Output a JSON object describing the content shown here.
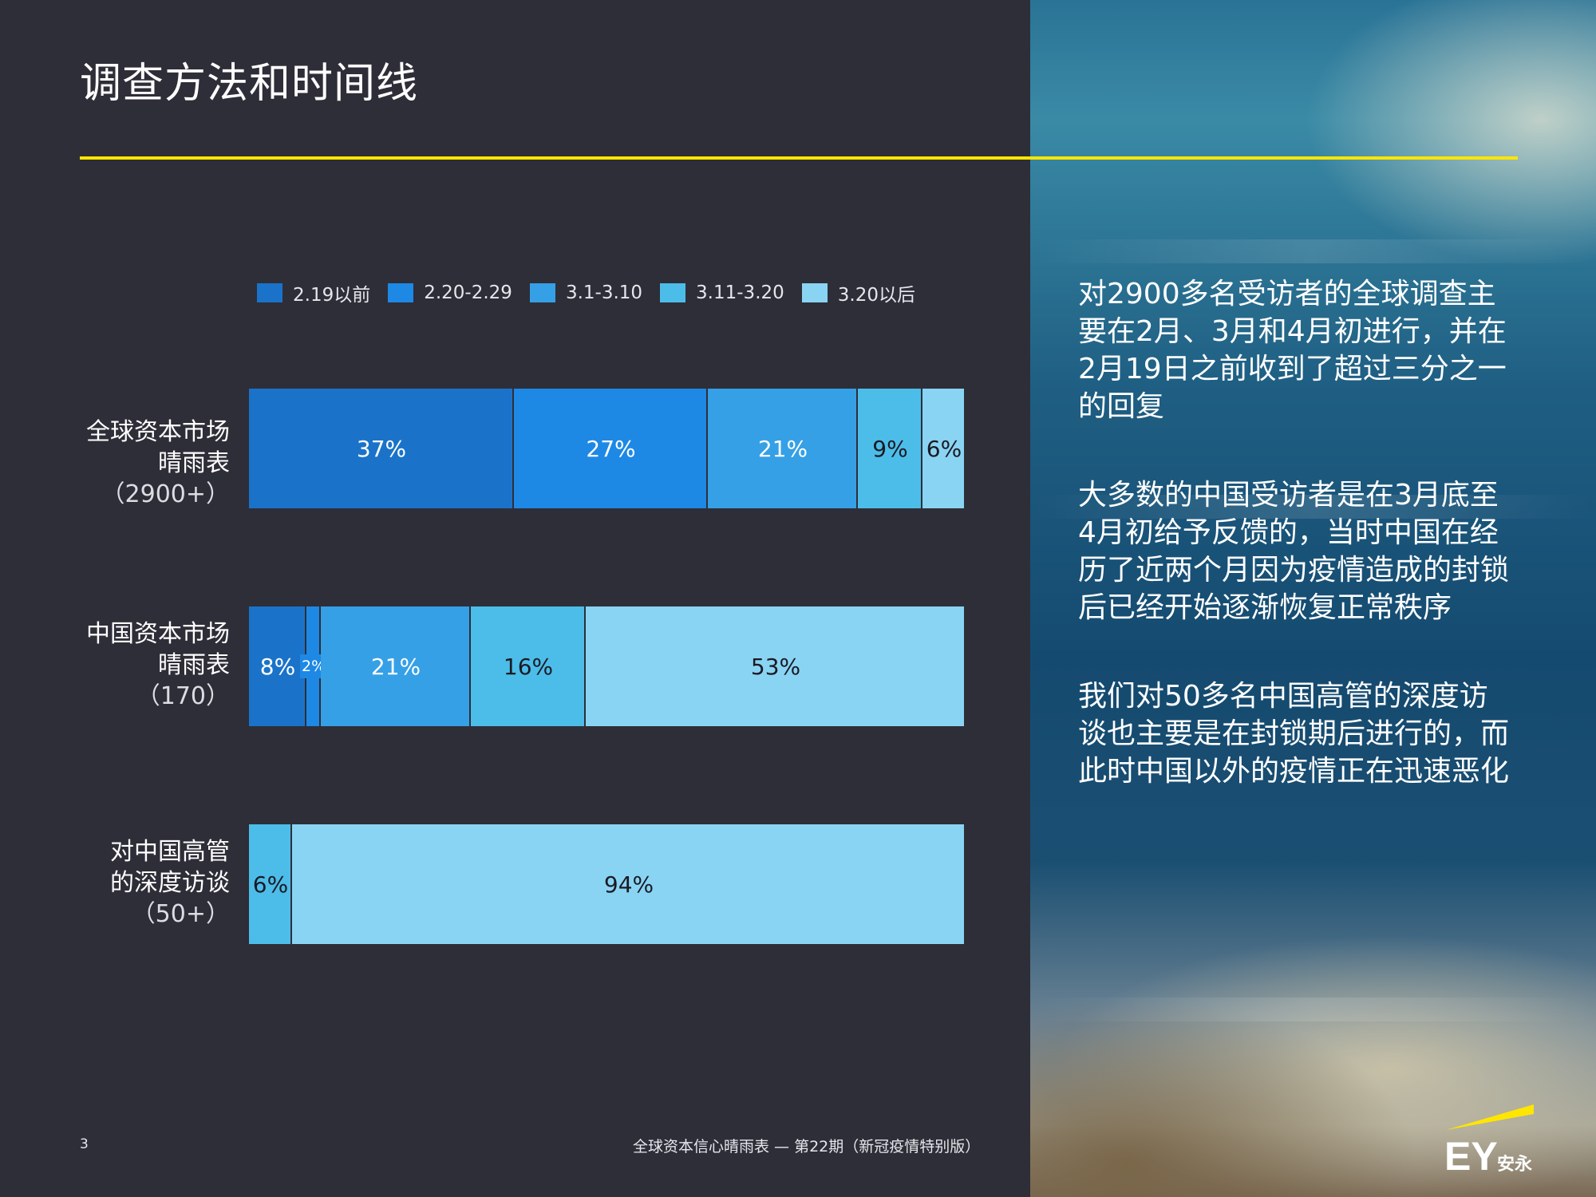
{
  "page": {
    "title": "调查方法和时间线",
    "page_number": "3",
    "footer": "全球资本信心晴雨表 — 第22期（新冠疫情特别版）",
    "logo_text": "EY安永",
    "accent_color": "#ffe600"
  },
  "chart_data": {
    "type": "bar",
    "orientation": "horizontal",
    "stacked": true,
    "normalized": true,
    "categories": [
      [
        "全球资本市场",
        "晴雨表",
        "（2900+）"
      ],
      [
        "中国资本市场",
        "晴雨表",
        "（170）"
      ],
      [
        "对中国高管",
        "的深度访谈",
        "（50+）"
      ]
    ],
    "legend_position": "top",
    "series": [
      {
        "name": "2.19以前",
        "color": "#1a73c9",
        "values": [
          37,
          8,
          0
        ],
        "labels": [
          "37%",
          "8%",
          ""
        ]
      },
      {
        "name": "2.20-2.29",
        "color": "#1e88e5",
        "values": [
          27,
          2,
          0
        ],
        "labels": [
          "27%",
          "2%",
          ""
        ]
      },
      {
        "name": "3.1-3.10",
        "color": "#35a0e6",
        "values": [
          21,
          21,
          0
        ],
        "labels": [
          "21%",
          "21%",
          ""
        ]
      },
      {
        "name": "3.11-3.20",
        "color": "#4cbde9",
        "values": [
          9,
          16,
          6
        ],
        "labels": [
          "9%",
          "16%",
          "6%"
        ]
      },
      {
        "name": "3.20以后",
        "color": "#8ad4f3",
        "values": [
          6,
          53,
          94
        ],
        "labels": [
          "6%",
          "53%",
          "94%"
        ]
      }
    ]
  },
  "side_text": [
    [
      "对2900多名受访者的全球调查主",
      "要在2月、3月和4月初进行，并在",
      "2月19日之前收到了超过三分之一",
      "的回复"
    ],
    [
      "大多数的中国受访者是在3月底至",
      "4月初给予反馈的，当时中国在经",
      "历了近两个月因为疫情造成的封锁",
      "后已经开始逐渐恢复正常秩序"
    ],
    [
      "我们对50多名中国高管的深度访",
      "谈也主要是在封锁期后进行的，而",
      "此时中国以外的疫情正在迅速恶化"
    ]
  ]
}
